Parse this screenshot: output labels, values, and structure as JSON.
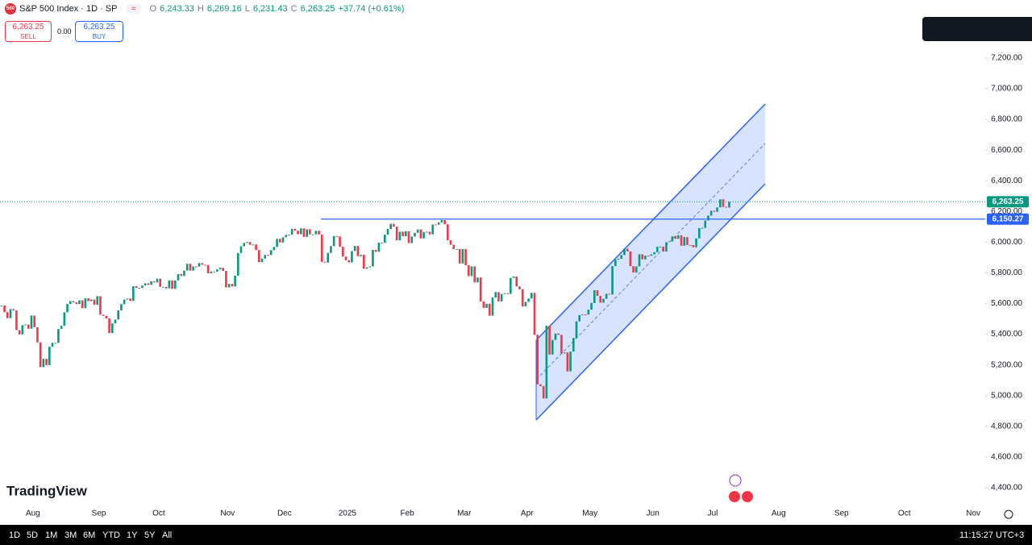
{
  "header": {
    "symbol": "S&P 500 Index · 1D · SP",
    "o_label": "O",
    "o": "6,243.33",
    "h_label": "H",
    "h": "6,269.16",
    "l_label": "L",
    "l": "6,231.43",
    "c_label": "C",
    "c": "6,263.25",
    "change": "+37.74 (+0.61%)"
  },
  "trade": {
    "sell_price": "6,263.25",
    "sell": "SELL",
    "spread": "0.00",
    "buy_price": "6,263.25",
    "buy": "BUY"
  },
  "logo": "TradingView",
  "bottom_bar": {
    "ranges": [
      "1D",
      "5D",
      "1M",
      "3M",
      "6M",
      "YTD",
      "1Y",
      "5Y",
      "All"
    ],
    "time": "11:15:27 UTC+3"
  },
  "chart_data": {
    "type": "candlestick",
    "values": [
      5588,
      5544,
      5505,
      5564,
      5555,
      5427,
      5399,
      5459,
      5463,
      5436,
      5522,
      5446,
      5347,
      5186,
      5240,
      5199,
      5319,
      5344,
      5344,
      5434,
      5455,
      5543,
      5597,
      5616,
      5608,
      5597,
      5621,
      5570,
      5634,
      5616,
      5626,
      5592,
      5648,
      5528,
      5520,
      5503,
      5408,
      5471,
      5496,
      5555,
      5596,
      5626,
      5633,
      5618,
      5713,
      5702,
      5702,
      5718,
      5732,
      5722,
      5745,
      5738,
      5762,
      5709,
      5709,
      5699,
      5751,
      5696,
      5751,
      5792,
      5780,
      5815,
      5859,
      5815,
      5842,
      5841,
      5864,
      5853,
      5851,
      5797,
      5809,
      5808,
      5823,
      5833,
      5813,
      5705,
      5728,
      5712,
      5782,
      5929,
      5973,
      5995,
      6001,
      5983,
      5985,
      5949,
      5870,
      5893,
      5917,
      5916,
      5948,
      5969,
      6021,
      5998,
      6032,
      6047,
      6049,
      6087,
      6075,
      6052,
      6090,
      6034,
      6084,
      6051,
      6051,
      6074,
      6050,
      5872,
      5867,
      5930,
      5974,
      6040,
      6037,
      5970,
      5906,
      5882,
      5868,
      5942,
      5975,
      5909,
      5918,
      5827,
      5836,
      5842,
      5950,
      5937,
      5997,
      5996,
      6049,
      6086,
      6119,
      6101,
      6012,
      6068,
      6039,
      6071,
      5994,
      6037,
      6061,
      6083,
      6025,
      6066,
      6068,
      6051,
      6115,
      6114,
      6129,
      6144,
      6117,
      6013,
      5983,
      5955,
      5956,
      5861,
      5955,
      5850,
      5779,
      5842,
      5738,
      5770,
      5614,
      5572,
      5599,
      5521,
      5639,
      5675,
      5614,
      5662,
      5667,
      5663,
      5767,
      5776,
      5712,
      5693,
      5581,
      5611,
      5633,
      5670,
      5397,
      5074,
      5062,
      4982,
      5456,
      5268,
      5363,
      5405,
      5396,
      5275,
      5282,
      5158,
      5287,
      5376,
      5484,
      5525,
      5529,
      5528,
      5560,
      5604,
      5687,
      5650,
      5606,
      5631,
      5664,
      5659,
      5844,
      5886,
      5892,
      5916,
      5958,
      5940,
      5844,
      5802,
      5842,
      5921,
      5888,
      5912,
      5911,
      5920,
      5935,
      5970,
      5971,
      5939,
      6000,
      6005,
      6038,
      6022,
      6045,
      5977,
      6033,
      5982,
      5981,
      5967,
      6025,
      6092,
      6093,
      6141,
      6173,
      6205,
      6198,
      6227,
      6279,
      6230,
      6226,
      6263.25
    ],
    "up_color": "#089981",
    "down_color": "#f23645",
    "xlim": [
      0,
      329
    ],
    "xticks": [
      {
        "value": 11,
        "label": "Aug"
      },
      {
        "value": 33,
        "label": "Sep"
      },
      {
        "value": 53,
        "label": "Oct"
      },
      {
        "value": 76,
        "label": "Nov"
      },
      {
        "value": 95,
        "label": "Dec"
      },
      {
        "value": 116,
        "label": "2025"
      },
      {
        "value": 136,
        "label": "Feb"
      },
      {
        "value": 155,
        "label": "Mar"
      },
      {
        "value": 176,
        "label": "Apr"
      },
      {
        "value": 197,
        "label": "May"
      },
      {
        "value": 218,
        "label": "Jun"
      },
      {
        "value": 238,
        "label": "Jul"
      },
      {
        "value": 260,
        "label": "Aug"
      },
      {
        "value": 281,
        "label": "Sep"
      },
      {
        "value": 302,
        "label": "Oct"
      },
      {
        "value": 325,
        "label": "Nov"
      }
    ],
    "ylim": [
      4279,
      7578
    ],
    "yticks": [
      {
        "value": 4400,
        "label": "4,400.00"
      },
      {
        "value": 4600,
        "label": "4,600.00"
      },
      {
        "value": 4800,
        "label": "4,800.00"
      },
      {
        "value": 5000,
        "label": "5,000.00"
      },
      {
        "value": 5200,
        "label": "5,200.00"
      },
      {
        "value": 5400,
        "label": "5,400.00"
      },
      {
        "value": 5600,
        "label": "5,600.00"
      },
      {
        "value": 5800,
        "label": "5,800.00"
      },
      {
        "value": 6000,
        "label": "6,000.00"
      },
      {
        "value": 6200,
        "label": "6,200.00"
      },
      {
        "value": 6400,
        "label": "6,400.00"
      },
      {
        "value": 6600,
        "label": "6,600.00"
      },
      {
        "value": 6800,
        "label": "6,800.00"
      },
      {
        "value": 7000,
        "label": "7,000.00"
      },
      {
        "value": 7200,
        "label": "7,200.00"
      }
    ],
    "last_price": {
      "value": 6263.25,
      "label": "6,263.25"
    },
    "hline": {
      "value": 6150.27,
      "label": "6,150.27"
    }
  }
}
